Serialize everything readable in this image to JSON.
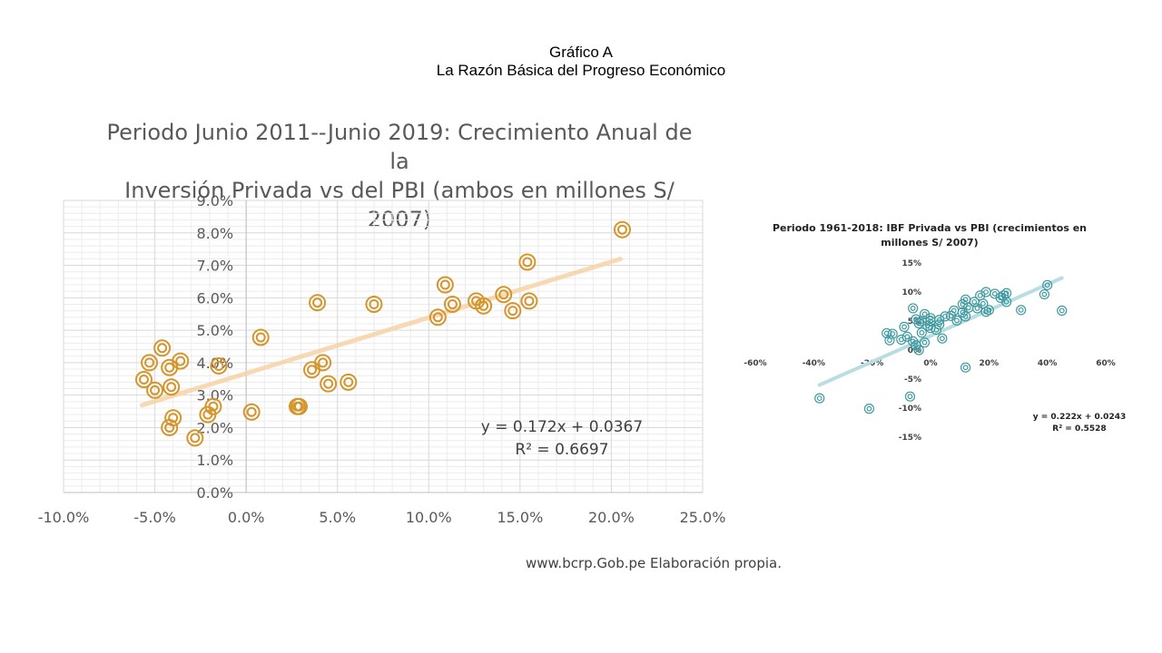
{
  "header": {
    "line1": "Gráfico A",
    "line2": "La Razón Básica del Progreso Económico"
  },
  "footer": {
    "source": "www.bcrp.Gob.pe  Elaboración propia."
  },
  "colors": {
    "main_marker": "#d4952c",
    "main_trend": "#f6d3a7",
    "small_marker": "#3f9aa0",
    "small_trend": "#b9dee2",
    "grid": "#d9d9d9"
  },
  "chart_data": [
    {
      "type": "scatter",
      "title_line1": "Periodo Junio 2011--Junio 2019: Crecimiento Anual de la",
      "title_line2": "Inversión Privada vs del PBI (ambos en millones S/ 2007)",
      "xlim": [
        -0.1,
        0.25
      ],
      "ylim": [
        0.0,
        0.09
      ],
      "x_ticks": [
        -0.1,
        -0.05,
        0.0,
        0.05,
        0.1,
        0.15,
        0.2,
        0.25
      ],
      "x_tick_labels": [
        "-10.0%",
        "-5.0%",
        "0.0%",
        "5.0%",
        "10.0%",
        "15.0%",
        "20.0%",
        "25.0%"
      ],
      "y_ticks": [
        0.0,
        0.01,
        0.02,
        0.03,
        0.04,
        0.05,
        0.06,
        0.07,
        0.08,
        0.09
      ],
      "y_tick_labels": [
        "0.0%",
        "1.0%",
        "2.0%",
        "3.0%",
        "4.0%",
        "5.0%",
        "6.0%",
        "7.0%",
        "8.0%",
        "9.0%"
      ],
      "grid": true,
      "trendline": {
        "slope": 0.172,
        "intercept": 0.0367,
        "x_range": [
          -0.057,
          0.205
        ]
      },
      "equation": "y = 0.172x + 0.0367",
      "r2": "R² = 0.6697",
      "points": [
        [
          0.206,
          0.081
        ],
        [
          0.154,
          0.071
        ],
        [
          0.109,
          0.064
        ],
        [
          0.141,
          0.061
        ],
        [
          0.155,
          0.059
        ],
        [
          0.126,
          0.059
        ],
        [
          0.113,
          0.058
        ],
        [
          0.13,
          0.0575
        ],
        [
          0.146,
          0.056
        ],
        [
          0.105,
          0.054
        ],
        [
          0.07,
          0.058
        ],
        [
          0.039,
          0.0585
        ],
        [
          0.008,
          0.0478
        ],
        [
          -0.046,
          0.0445
        ],
        [
          -0.053,
          0.04
        ],
        [
          -0.036,
          0.0405
        ],
        [
          -0.042,
          0.0385
        ],
        [
          -0.015,
          0.039
        ],
        [
          0.042,
          0.04
        ],
        [
          0.036,
          0.0378
        ],
        [
          -0.056,
          0.0348
        ],
        [
          -0.05,
          0.0315
        ],
        [
          -0.041,
          0.0325
        ],
        [
          0.045,
          0.0335
        ],
        [
          0.056,
          0.034
        ],
        [
          0.028,
          0.0265
        ],
        [
          0.029,
          0.0265
        ],
        [
          0.003,
          0.0248
        ],
        [
          -0.018,
          0.0265
        ],
        [
          -0.021,
          0.024
        ],
        [
          -0.04,
          0.023
        ],
        [
          -0.042,
          0.02
        ],
        [
          -0.028,
          0.0168
        ]
      ]
    },
    {
      "type": "scatter",
      "title_line1": "Periodo 1961-2018: IBF Privada vs PBI (crecimientos en",
      "title_line2": "millones S/ 2007)",
      "xlim": [
        -0.6,
        0.6
      ],
      "ylim": [
        -0.15,
        0.15
      ],
      "x_ticks": [
        -0.6,
        -0.4,
        -0.2,
        0.0,
        0.2,
        0.4,
        0.6
      ],
      "x_tick_labels": [
        "-60%",
        "-40%",
        "-20%",
        "0%",
        "20%",
        "40%",
        "60%"
      ],
      "y_ticks": [
        -0.15,
        -0.1,
        -0.05,
        0.05,
        0.1,
        0.15
      ],
      "y_tick_labels": [
        "-15%",
        "-10%",
        "-5%",
        "5%",
        "10%",
        "15%"
      ],
      "grid": false,
      "trendline": {
        "slope": 0.222,
        "intercept": 0.0243,
        "x_range": [
          -0.38,
          0.45
        ]
      },
      "equation": "y = 0.222x + 0.0243",
      "r2": "R² = 0.5528",
      "points": [
        [
          0.4,
          0.112
        ],
        [
          0.39,
          0.096
        ],
        [
          0.45,
          0.068
        ],
        [
          0.26,
          0.098
        ],
        [
          0.22,
          0.097
        ],
        [
          0.19,
          0.1
        ],
        [
          0.17,
          0.094
        ],
        [
          0.25,
          0.094
        ],
        [
          0.24,
          0.09
        ],
        [
          0.26,
          0.083
        ],
        [
          0.31,
          0.069
        ],
        [
          0.12,
          0.087
        ],
        [
          0.15,
          0.083
        ],
        [
          0.11,
          0.079
        ],
        [
          0.18,
          0.08
        ],
        [
          0.13,
          0.073
        ],
        [
          0.16,
          0.072
        ],
        [
          0.19,
          0.066
        ],
        [
          0.2,
          0.069
        ],
        [
          0.11,
          0.065
        ],
        [
          0.08,
          0.068
        ],
        [
          0.12,
          0.058
        ],
        [
          0.07,
          0.059
        ],
        [
          0.09,
          0.051
        ],
        [
          0.05,
          0.058
        ],
        [
          0.03,
          0.052
        ],
        [
          0.0,
          0.055
        ],
        [
          -0.02,
          0.062
        ],
        [
          -0.03,
          0.05
        ],
        [
          -0.01,
          0.042
        ],
        [
          0.0,
          0.038
        ],
        [
          0.02,
          0.035
        ],
        [
          -0.05,
          0.053
        ],
        [
          -0.06,
          0.072
        ],
        [
          -0.09,
          0.04
        ],
        [
          -0.13,
          0.028
        ],
        [
          -0.15,
          0.029
        ],
        [
          -0.14,
          0.017
        ],
        [
          -0.08,
          0.023
        ],
        [
          -0.06,
          0.015
        ],
        [
          -0.02,
          0.013
        ],
        [
          0.04,
          0.02
        ],
        [
          -0.05,
          0.008
        ],
        [
          -0.1,
          0.018
        ],
        [
          -0.04,
          0.0
        ],
        [
          0.12,
          -0.03
        ],
        [
          -0.07,
          -0.08
        ],
        [
          -0.38,
          -0.083
        ],
        [
          -0.21,
          -0.101
        ],
        [
          0.0,
          0.05
        ],
        [
          -0.04,
          0.046
        ],
        [
          -0.03,
          0.03
        ],
        [
          0.03,
          0.044
        ]
      ]
    }
  ]
}
